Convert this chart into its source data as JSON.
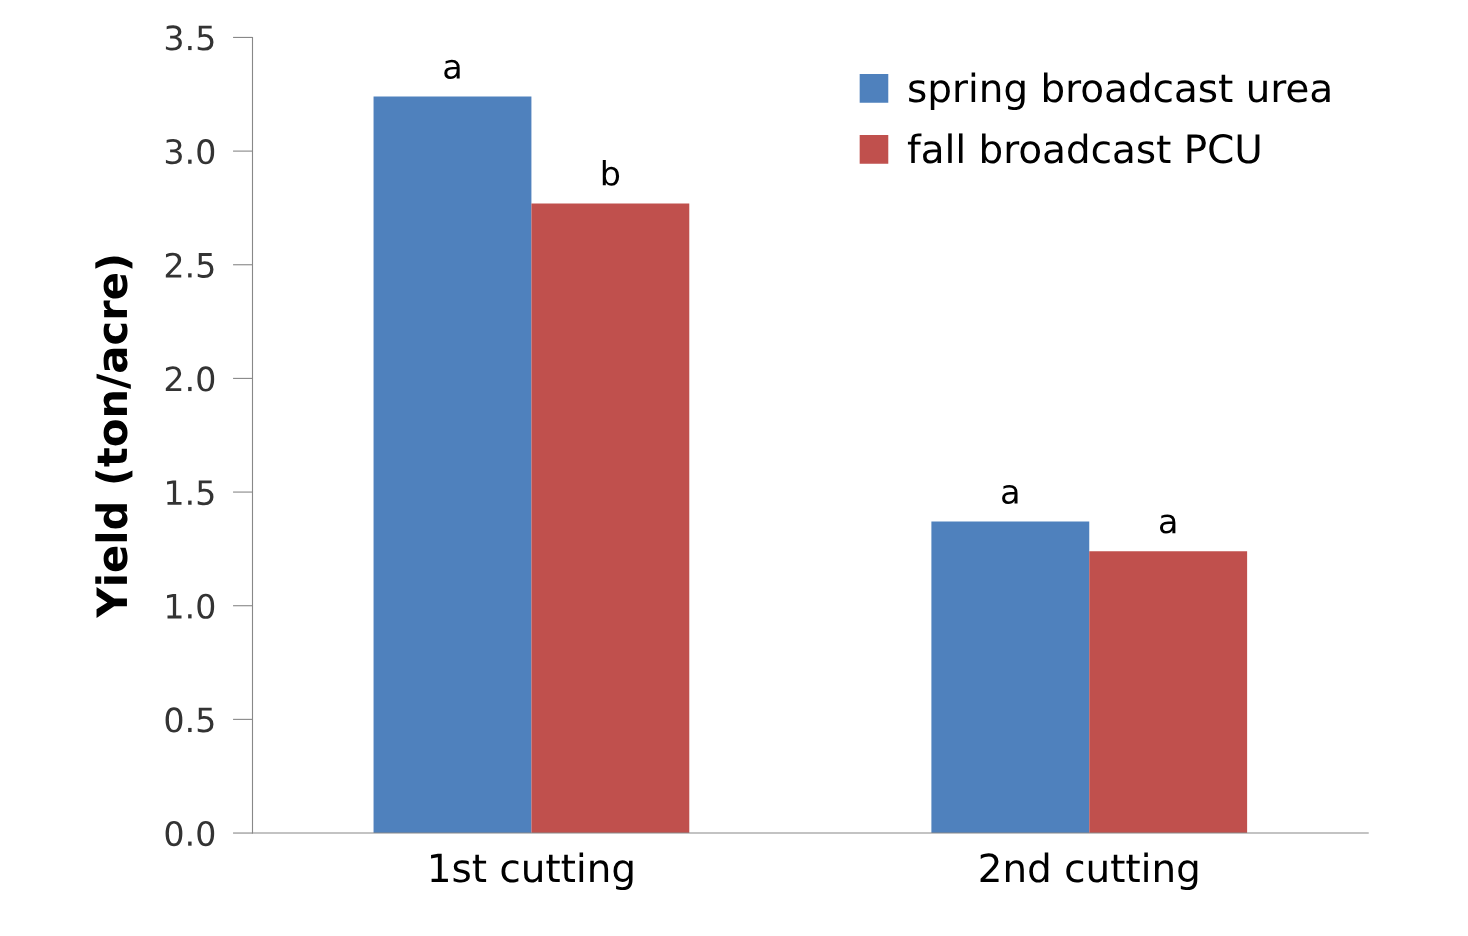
{
  "chart_data": {
    "type": "bar",
    "ylabel": "Yield (ton/acre)",
    "categories": [
      "1st cutting",
      "2nd cutting"
    ],
    "series": [
      {
        "name": "spring broadcast urea",
        "color": "#4f81bd",
        "values": [
          3.24,
          1.37
        ]
      },
      {
        "name": "fall broadcast PCU",
        "color": "#c0504d",
        "values": [
          2.77,
          1.24
        ]
      }
    ],
    "ylim": [
      0,
      3.5
    ],
    "yticks": [
      {
        "value": 0,
        "label": "0.0"
      },
      {
        "value": 0.5,
        "label": "0.5"
      },
      {
        "value": 1,
        "label": "1.0"
      },
      {
        "value": 1.5,
        "label": "1.5"
      },
      {
        "value": 2,
        "label": "2.0"
      },
      {
        "value": 2.5,
        "label": "2.5"
      },
      {
        "value": 3,
        "label": "3.0"
      },
      {
        "value": 3.5,
        "label": "3.5"
      }
    ],
    "grid": false,
    "legend": "top right",
    "annotations": [
      {
        "text": "a",
        "x": "1st cutting",
        "y": 3.24
      },
      {
        "text": "b",
        "x": "1st cutting",
        "y": 2.77
      },
      {
        "text": "a",
        "x": "2nd cutting",
        "y": 1.37
      },
      {
        "text": "a",
        "x": "2nd cutting",
        "y": 1.24
      }
    ]
  }
}
